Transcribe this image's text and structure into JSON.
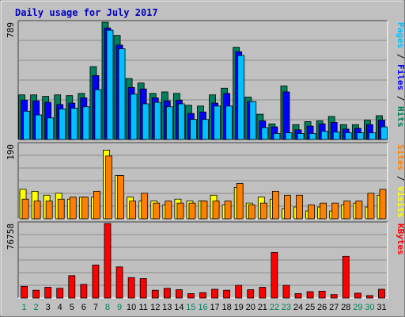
{
  "chart_data": {
    "type": "bar",
    "title": "Daily usage for July 2017",
    "days": [
      "1",
      "2",
      "3",
      "4",
      "5",
      "6",
      "7",
      "8",
      "9",
      "10",
      "11",
      "12",
      "13",
      "14",
      "15",
      "16",
      "17",
      "18",
      "19",
      "20",
      "21",
      "22",
      "23",
      "24",
      "25",
      "26",
      "27",
      "28",
      "29",
      "30",
      "31"
    ],
    "weekend_days": [
      "1",
      "2",
      "8",
      "9",
      "15",
      "16",
      "22",
      "23",
      "29",
      "30"
    ],
    "panels": [
      {
        "max_label": "789",
        "max": 789,
        "side_labels": [
          {
            "text": "Pages",
            "color": "#00c0ff"
          },
          {
            "text": " / ",
            "color": "#000000"
          },
          {
            "text": "Files",
            "color": "#0000ff"
          },
          {
            "text": " / ",
            "color": "#000000"
          },
          {
            "text": "Hits",
            "color": "#00805c"
          }
        ],
        "series": [
          {
            "name": "Hits",
            "color": "#00805c",
            "values": [
              300,
              300,
              290,
              300,
              295,
              310,
              490,
              789,
              700,
              410,
              380,
              310,
              320,
              310,
              230,
              225,
              300,
              345,
              620,
              285,
              170,
              105,
              360,
              100,
              120,
              125,
              155,
              100,
              100,
              130,
              160
            ]
          },
          {
            "name": "Files",
            "color": "#0000ff",
            "values": [
              265,
              260,
              250,
              235,
              245,
              280,
              430,
              750,
              635,
              350,
              340,
              280,
              260,
              265,
              175,
              185,
              245,
              310,
              590,
              255,
              125,
              85,
              320,
              65,
              90,
              105,
              115,
              70,
              75,
              100,
              130
            ]
          },
          {
            "name": "Pages",
            "color": "#00c0ff",
            "values": [
              190,
              165,
              145,
              205,
              210,
              220,
              335,
              735,
              610,
              305,
              240,
              250,
              220,
              240,
              135,
              135,
              225,
              225,
              565,
              255,
              80,
              40,
              45,
              40,
              40,
              55,
              50,
              45,
              45,
              45,
              85
            ]
          }
        ]
      },
      {
        "max_label": "190",
        "max": 190,
        "side_labels": [
          {
            "text": "Sites",
            "color": "#ff8000"
          },
          {
            "text": " / ",
            "color": "#000000"
          },
          {
            "text": "Visits",
            "color": "#ffff00"
          }
        ],
        "series": [
          {
            "name": "Visits",
            "color": "#ffff00",
            "values": [
              75,
              70,
              60,
              65,
              50,
              55,
              55,
              175,
              110,
              55,
              45,
              45,
              35,
              50,
              45,
              45,
              60,
              35,
              80,
              40,
              55,
              50,
              25,
              30,
              20,
              30,
              20,
              35,
              40,
              30,
              60
            ]
          },
          {
            "name": "Sites",
            "color": "#ff8000",
            "values": [
              50,
              45,
              45,
              50,
              55,
              55,
              70,
              160,
              110,
              45,
              65,
              40,
              45,
              40,
              40,
              45,
              45,
              45,
              90,
              35,
              40,
              70,
              60,
              60,
              35,
              40,
              40,
              45,
              45,
              65,
              75
            ]
          }
        ]
      },
      {
        "max_label": "76758",
        "max": 76758,
        "side_labels": [
          {
            "text": "KBytes",
            "color": "#ff0000"
          }
        ],
        "series": [
          {
            "name": "KBytes",
            "color": "#ff0000",
            "values": [
              12000,
              8000,
              11000,
              10000,
              23000,
              14000,
              34000,
              76758,
              32000,
              21000,
              20000,
              8000,
              10000,
              8500,
              4500,
              5500,
              9000,
              8000,
              13000,
              8500,
              11000,
              47000,
              13000,
              4500,
              6500,
              7000,
              3500,
              43000,
              5000,
              2500,
              9000
            ]
          }
        ]
      }
    ]
  },
  "colors": {
    "plot_bg": "#c0c0c0",
    "frame_bg": "#c0c0c0",
    "weekend_label": "#00805c",
    "weekday_label": "#000080"
  }
}
